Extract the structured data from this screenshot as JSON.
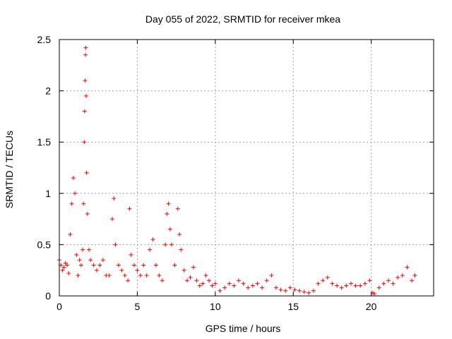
{
  "chart_data": {
    "type": "scatter",
    "title": "Day 055 of 2022, SRMTID for receiver mkea",
    "xlabel": "GPS time / hours",
    "ylabel": "SRMTID / TECUs",
    "xlim": [
      0,
      24
    ],
    "ylim": [
      0,
      2.5
    ],
    "xticks": [
      0,
      5,
      10,
      15,
      20
    ],
    "yticks": [
      0,
      0.5,
      1,
      1.5,
      2,
      2.5
    ],
    "xtick_labels": [
      "0",
      "5",
      "10",
      "15",
      "20"
    ],
    "ytick_labels": [
      "0",
      "0.5",
      "1",
      "1.5",
      "2",
      "2.5"
    ],
    "grid": true,
    "marker": "plus",
    "series": [
      {
        "name": "SRMTID",
        "color": "#ff0000",
        "x": [
          0.0,
          0.1,
          0.2,
          0.3,
          0.4,
          0.5,
          0.6,
          0.7,
          0.8,
          0.9,
          1.0,
          1.1,
          1.2,
          1.3,
          1.4,
          1.5,
          1.55,
          1.6,
          1.62,
          1.65,
          1.68,
          1.7,
          1.72,
          1.75,
          1.8,
          1.9,
          2.0,
          2.2,
          2.4,
          2.6,
          2.8,
          3.0,
          3.2,
          3.4,
          3.5,
          3.6,
          3.8,
          4.0,
          4.2,
          4.4,
          4.5,
          4.6,
          4.8,
          5.0,
          5.2,
          5.4,
          5.6,
          5.8,
          6.0,
          6.2,
          6.4,
          6.6,
          6.8,
          6.9,
          7.0,
          7.1,
          7.2,
          7.4,
          7.6,
          7.7,
          7.8,
          8.0,
          8.2,
          8.4,
          8.6,
          8.8,
          9.0,
          9.2,
          9.4,
          9.6,
          9.8,
          10.0,
          10.3,
          10.6,
          10.9,
          11.2,
          11.5,
          11.8,
          12.1,
          12.4,
          12.7,
          13.0,
          13.3,
          13.6,
          13.9,
          14.2,
          14.5,
          14.8,
          15.1,
          15.4,
          15.7,
          16.0,
          16.3,
          16.6,
          16.9,
          17.2,
          17.5,
          17.8,
          18.1,
          18.4,
          18.7,
          19.0,
          19.3,
          19.6,
          19.9,
          20.1,
          20.2,
          20.5,
          20.8,
          21.1,
          21.4,
          21.7,
          22.0,
          22.3,
          22.6,
          22.8
        ],
        "y": [
          0.35,
          0.3,
          0.25,
          0.28,
          0.32,
          0.3,
          0.22,
          0.6,
          0.9,
          1.15,
          1.0,
          0.4,
          0.2,
          0.35,
          0.3,
          0.45,
          0.9,
          1.5,
          1.8,
          2.1,
          2.35,
          2.42,
          1.95,
          1.2,
          0.8,
          0.45,
          0.35,
          0.3,
          0.25,
          0.3,
          0.35,
          0.2,
          0.2,
          0.75,
          0.95,
          0.5,
          0.3,
          0.25,
          0.2,
          0.15,
          0.85,
          0.4,
          0.3,
          0.25,
          0.2,
          0.3,
          0.2,
          0.45,
          0.55,
          0.3,
          0.2,
          0.15,
          0.5,
          0.8,
          0.9,
          0.65,
          0.5,
          0.3,
          0.85,
          0.6,
          0.45,
          0.25,
          0.15,
          0.18,
          0.28,
          0.15,
          0.1,
          0.12,
          0.2,
          0.15,
          0.1,
          0.12,
          0.05,
          0.08,
          0.12,
          0.1,
          0.15,
          0.12,
          0.08,
          0.1,
          0.12,
          0.08,
          0.15,
          0.2,
          0.08,
          0.06,
          0.05,
          0.08,
          0.06,
          0.05,
          0.04,
          0.03,
          0.05,
          0.12,
          0.15,
          0.18,
          0.12,
          0.1,
          0.08,
          0.1,
          0.12,
          0.1,
          0.1,
          0.12,
          0.15,
          0.03,
          0.02,
          0.08,
          0.12,
          0.15,
          0.12,
          0.18,
          0.2,
          0.28,
          0.15,
          0.2
        ]
      }
    ]
  }
}
